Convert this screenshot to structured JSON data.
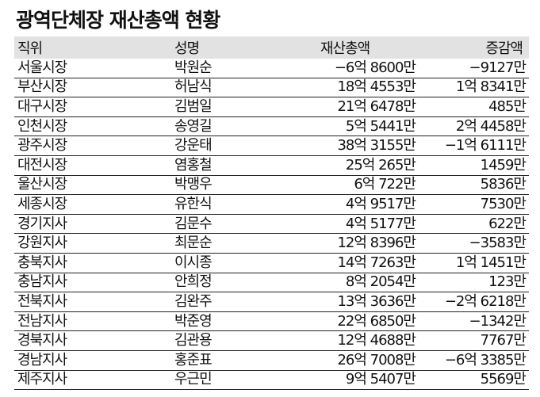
{
  "title": "광역단체장 재산총액 현황",
  "headers": [
    "직위",
    "성명",
    "재산총액",
    "증감액"
  ],
  "rows": [
    [
      "서울시장",
      "박원순",
      "−6억 8600만",
      "−9127만"
    ],
    [
      "부산시장",
      "허남식",
      "18억 4553만",
      "1억 8341만"
    ],
    [
      "대구시장",
      "김범일",
      "21억 6478만",
      "485만"
    ],
    [
      "인천시장",
      "송영길",
      "5억 5441만",
      "2억 4458만"
    ],
    [
      "광주시장",
      "강운태",
      "38억 3155만",
      "−1억 6111만"
    ],
    [
      "대전시장",
      "염홍철",
      "25억 265만",
      "1459만"
    ],
    [
      "울산시장",
      "박맹우",
      "6억 722만",
      "5836만"
    ],
    [
      "세종시장",
      "유한식",
      "4억 9517만",
      "7530만"
    ],
    [
      "경기지사",
      "김문수",
      "4억 5177만",
      "622만"
    ],
    [
      "강원지사",
      "최문순",
      "12억 8396만",
      "−3583만"
    ],
    [
      "충북지사",
      "이시종",
      "14억 7263만",
      "1억 1451만"
    ],
    [
      "충남지사",
      "안희정",
      "8억 2054만",
      "123만"
    ],
    [
      "전북지사",
      "김완주",
      "13억 3636만",
      "−2억 6218만"
    ],
    [
      "전남지사",
      "박준영",
      "22억 6850만",
      "−1342만"
    ],
    [
      "경북지사",
      "김관용",
      "12억 4688만",
      "7767만"
    ],
    [
      "경남지사",
      "홍준표",
      "26억 7008만",
      "−6억 3385만"
    ],
    [
      "제주지사",
      "우근민",
      "9억 5407만",
      "5569만"
    ]
  ],
  "colors": {
    "header_bg": "#e2e2e2",
    "rule": "#222222"
  }
}
